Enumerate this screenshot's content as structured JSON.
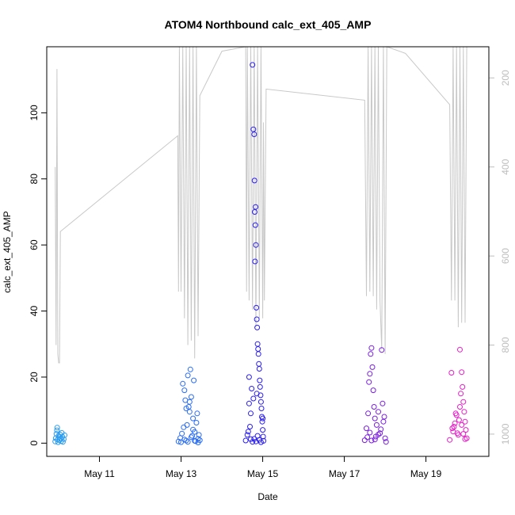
{
  "chart_data": {
    "type": "scatter",
    "title": "ATOM4 Northbound calc_ext_405_AMP",
    "xlabel": "Date",
    "ylabel": "calc_ext_405_AMP",
    "x_axis": {
      "type": "date",
      "range": [
        "2018-05-09T17:00",
        "2018-05-20T13:00"
      ],
      "ticks": [
        {
          "x": "2018-05-11",
          "label": "May 11"
        },
        {
          "x": "2018-05-13",
          "label": "May 13"
        },
        {
          "x": "2018-05-15",
          "label": "May 15"
        },
        {
          "x": "2018-05-17",
          "label": "May 17"
        },
        {
          "x": "2018-05-19",
          "label": "May 19"
        }
      ]
    },
    "y_axis": {
      "range": [
        -4,
        120
      ],
      "ticks": [
        0,
        20,
        40,
        60,
        80,
        100
      ]
    },
    "y2_axis": {
      "range": [
        1050,
        130
      ],
      "reversed": true,
      "ticks": [
        200,
        400,
        600,
        800,
        1000
      ],
      "color": "#bdbdbd"
    },
    "grid": false,
    "series": [
      {
        "kind": "points",
        "color": "#2b9cf0",
        "points": [
          {
            "x": "2018-05-09T22:00",
            "y": 0.5
          },
          {
            "x": "2018-05-09T22:20",
            "y": 1.5
          },
          {
            "x": "2018-05-09T22:40",
            "y": 2.8
          },
          {
            "x": "2018-05-09T23:00",
            "y": 3.9
          },
          {
            "x": "2018-05-09T23:10",
            "y": 4.7
          },
          {
            "x": "2018-05-09T23:20",
            "y": 1.1
          },
          {
            "x": "2018-05-09T23:40",
            "y": 0.3
          },
          {
            "x": "2018-05-10T00:00",
            "y": 2.2
          },
          {
            "x": "2018-05-10T00:10",
            "y": 1.8
          },
          {
            "x": "2018-05-10T00:30",
            "y": 0.9
          },
          {
            "x": "2018-05-10T00:50",
            "y": 2.6
          },
          {
            "x": "2018-05-10T01:10",
            "y": 1.4
          },
          {
            "x": "2018-05-10T01:30",
            "y": 0.6
          },
          {
            "x": "2018-05-10T01:50",
            "y": 3.1
          },
          {
            "x": "2018-05-10T02:10",
            "y": 1.9
          },
          {
            "x": "2018-05-10T02:30",
            "y": 0.4
          },
          {
            "x": "2018-05-10T03:00",
            "y": 1.2
          },
          {
            "x": "2018-05-10T03:30",
            "y": 2.4
          }
        ]
      },
      {
        "kind": "points",
        "color": "#2a6ef5",
        "points": [
          {
            "x": "2018-05-12T22:30",
            "y": 0.5
          },
          {
            "x": "2018-05-12T23:30",
            "y": 1.6
          },
          {
            "x": "2018-05-13T00:30",
            "y": 2.9
          },
          {
            "x": "2018-05-13T01:00",
            "y": 18.0
          },
          {
            "x": "2018-05-13T01:30",
            "y": 4.8
          },
          {
            "x": "2018-05-13T02:00",
            "y": 16.0
          },
          {
            "x": "2018-05-13T02:30",
            "y": 13.0
          },
          {
            "x": "2018-05-13T03:00",
            "y": 0.8
          },
          {
            "x": "2018-05-13T03:30",
            "y": 5.5
          },
          {
            "x": "2018-05-13T04:00",
            "y": 20.5
          },
          {
            "x": "2018-05-13T04:30",
            "y": 11.0
          },
          {
            "x": "2018-05-13T05:00",
            "y": 9.5
          },
          {
            "x": "2018-05-13T05:30",
            "y": 22.3
          },
          {
            "x": "2018-05-13T06:00",
            "y": 14.0
          },
          {
            "x": "2018-05-13T06:30",
            "y": 2.2
          },
          {
            "x": "2018-05-13T07:00",
            "y": 7.5
          },
          {
            "x": "2018-05-13T07:30",
            "y": 19.0
          },
          {
            "x": "2018-05-13T08:00",
            "y": 3.4
          },
          {
            "x": "2018-05-13T08:30",
            "y": 0.6
          },
          {
            "x": "2018-05-13T09:00",
            "y": 6.2
          },
          {
            "x": "2018-05-13T09:30",
            "y": 9.0
          },
          {
            "x": "2018-05-13T10:00",
            "y": 1.3
          },
          {
            "x": "2018-05-13T10:30",
            "y": 2.5
          },
          {
            "x": "2018-05-13T11:00",
            "y": 0.9
          },
          {
            "x": "2018-05-13T00:00",
            "y": 0.3
          },
          {
            "x": "2018-05-13T02:00",
            "y": 1.1
          },
          {
            "x": "2018-05-13T04:00",
            "y": 0.4
          },
          {
            "x": "2018-05-13T06:00",
            "y": 1.8
          },
          {
            "x": "2018-05-13T08:00",
            "y": 0.7
          },
          {
            "x": "2018-05-13T10:00",
            "y": 0.2
          },
          {
            "x": "2018-05-13T03:00",
            "y": 10.5
          },
          {
            "x": "2018-05-13T05:00",
            "y": 12.5
          },
          {
            "x": "2018-05-13T07:00",
            "y": 4.1
          }
        ]
      },
      {
        "kind": "points",
        "color": "#2a1ef0",
        "points": [
          {
            "x": "2018-05-14T14:00",
            "y": 0.8
          },
          {
            "x": "2018-05-14T15:00",
            "y": 2.5
          },
          {
            "x": "2018-05-14T16:00",
            "y": 12.0
          },
          {
            "x": "2018-05-14T16:30",
            "y": 5.0
          },
          {
            "x": "2018-05-14T17:00",
            "y": 1.2
          },
          {
            "x": "2018-05-14T17:30",
            "y": 16.5
          },
          {
            "x": "2018-05-14T18:00",
            "y": 114.5
          },
          {
            "x": "2018-05-14T18:30",
            "y": 95.0
          },
          {
            "x": "2018-05-14T19:00",
            "y": 93.5
          },
          {
            "x": "2018-05-14T19:10",
            "y": 79.5
          },
          {
            "x": "2018-05-14T19:20",
            "y": 70.0
          },
          {
            "x": "2018-05-14T19:30",
            "y": 55.0
          },
          {
            "x": "2018-05-14T19:40",
            "y": 66.0
          },
          {
            "x": "2018-05-14T19:50",
            "y": 71.5
          },
          {
            "x": "2018-05-14T20:00",
            "y": 60.0
          },
          {
            "x": "2018-05-14T20:15",
            "y": 41.0
          },
          {
            "x": "2018-05-14T20:30",
            "y": 37.5
          },
          {
            "x": "2018-05-14T20:45",
            "y": 35.0
          },
          {
            "x": "2018-05-14T21:00",
            "y": 30.0
          },
          {
            "x": "2018-05-14T21:15",
            "y": 28.5
          },
          {
            "x": "2018-05-14T21:30",
            "y": 27.0
          },
          {
            "x": "2018-05-14T21:45",
            "y": 24.0
          },
          {
            "x": "2018-05-14T22:00",
            "y": 22.5
          },
          {
            "x": "2018-05-14T22:15",
            "y": 19.0
          },
          {
            "x": "2018-05-14T22:30",
            "y": 17.0
          },
          {
            "x": "2018-05-14T22:45",
            "y": 14.5
          },
          {
            "x": "2018-05-14T23:00",
            "y": 12.5
          },
          {
            "x": "2018-05-14T23:15",
            "y": 10.5
          },
          {
            "x": "2018-05-14T23:30",
            "y": 8.0
          },
          {
            "x": "2018-05-14T23:45",
            "y": 6.5
          },
          {
            "x": "2018-05-15T00:00",
            "y": 4.0
          },
          {
            "x": "2018-05-15T00:15",
            "y": 2.0
          },
          {
            "x": "2018-05-15T00:30",
            "y": 0.7
          },
          {
            "x": "2018-05-14T18:00",
            "y": 0.4
          },
          {
            "x": "2018-05-14T19:00",
            "y": 1.3
          },
          {
            "x": "2018-05-14T20:00",
            "y": 0.5
          },
          {
            "x": "2018-05-14T21:00",
            "y": 2.2
          },
          {
            "x": "2018-05-14T22:00",
            "y": 1.0
          },
          {
            "x": "2018-05-14T23:00",
            "y": 0.3
          },
          {
            "x": "2018-05-14T16:00",
            "y": 20.0
          },
          {
            "x": "2018-05-14T17:00",
            "y": 9.0
          },
          {
            "x": "2018-05-14T18:30",
            "y": 13.5
          },
          {
            "x": "2018-05-15T00:00",
            "y": 7.5
          },
          {
            "x": "2018-05-14T15:30",
            "y": 3.5
          },
          {
            "x": "2018-05-14T20:30",
            "y": 15.0
          }
        ]
      },
      {
        "kind": "points",
        "color": "#7a1ee0",
        "points": [
          {
            "x": "2018-05-17T12:00",
            "y": 0.9
          },
          {
            "x": "2018-05-17T13:00",
            "y": 4.5
          },
          {
            "x": "2018-05-17T14:00",
            "y": 9.0
          },
          {
            "x": "2018-05-17T14:30",
            "y": 18.5
          },
          {
            "x": "2018-05-17T15:00",
            "y": 21.0
          },
          {
            "x": "2018-05-17T15:30",
            "y": 27.0
          },
          {
            "x": "2018-05-17T16:00",
            "y": 28.8
          },
          {
            "x": "2018-05-17T16:30",
            "y": 23.0
          },
          {
            "x": "2018-05-17T17:00",
            "y": 16.0
          },
          {
            "x": "2018-05-17T17:30",
            "y": 11.0
          },
          {
            "x": "2018-05-17T18:00",
            "y": 7.5
          },
          {
            "x": "2018-05-17T18:30",
            "y": 2.0
          },
          {
            "x": "2018-05-17T19:00",
            "y": 5.5
          },
          {
            "x": "2018-05-17T20:00",
            "y": 9.5
          },
          {
            "x": "2018-05-17T21:00",
            "y": 3.0
          },
          {
            "x": "2018-05-17T22:00",
            "y": 28.2
          },
          {
            "x": "2018-05-17T22:30",
            "y": 12.0
          },
          {
            "x": "2018-05-17T23:00",
            "y": 6.5
          },
          {
            "x": "2018-05-18T00:00",
            "y": 1.5
          },
          {
            "x": "2018-05-18T00:30",
            "y": 0.4
          },
          {
            "x": "2018-05-17T13:30",
            "y": 1.8
          },
          {
            "x": "2018-05-17T15:00",
            "y": 3.2
          },
          {
            "x": "2018-05-17T16:00",
            "y": 0.8
          },
          {
            "x": "2018-05-17T18:00",
            "y": 1.1
          },
          {
            "x": "2018-05-17T20:00",
            "y": 2.6
          },
          {
            "x": "2018-05-17T21:30",
            "y": 4.2
          },
          {
            "x": "2018-05-17T23:30",
            "y": 8.0
          }
        ]
      },
      {
        "kind": "points",
        "color": "#e61ec8",
        "points": [
          {
            "x": "2018-05-19T14:00",
            "y": 1.0
          },
          {
            "x": "2018-05-19T15:00",
            "y": 21.3
          },
          {
            "x": "2018-05-19T16:00",
            "y": 3.5
          },
          {
            "x": "2018-05-19T17:00",
            "y": 6.0
          },
          {
            "x": "2018-05-19T18:00",
            "y": 8.5
          },
          {
            "x": "2018-05-19T19:00",
            "y": 2.5
          },
          {
            "x": "2018-05-19T20:00",
            "y": 28.3
          },
          {
            "x": "2018-05-19T20:30",
            "y": 15.0
          },
          {
            "x": "2018-05-19T21:00",
            "y": 21.5
          },
          {
            "x": "2018-05-19T21:30",
            "y": 17.0
          },
          {
            "x": "2018-05-19T22:00",
            "y": 12.5
          },
          {
            "x": "2018-05-19T22:30",
            "y": 9.5
          },
          {
            "x": "2018-05-19T23:00",
            "y": 6.5
          },
          {
            "x": "2018-05-19T23:30",
            "y": 4.0
          },
          {
            "x": "2018-05-20T00:00",
            "y": 1.5
          },
          {
            "x": "2018-05-19T16:30",
            "y": 5.0
          },
          {
            "x": "2018-05-19T18:30",
            "y": 3.0
          },
          {
            "x": "2018-05-19T19:30",
            "y": 7.0
          },
          {
            "x": "2018-05-19T21:00",
            "y": 5.5
          },
          {
            "x": "2018-05-19T22:00",
            "y": 2.8
          },
          {
            "x": "2018-05-19T23:00",
            "y": 1.2
          },
          {
            "x": "2018-05-19T15:30",
            "y": 4.5
          },
          {
            "x": "2018-05-19T17:30",
            "y": 9.0
          },
          {
            "x": "2018-05-19T20:00",
            "y": 11.0
          }
        ]
      },
      {
        "kind": "line",
        "axis": "y2",
        "color": "#c8c8c8",
        "points": [
          {
            "x": "2018-05-09T22:00",
            "y": 400
          },
          {
            "x": "2018-05-09T22:30",
            "y": 800
          },
          {
            "x": "2018-05-09T23:00",
            "y": 180
          },
          {
            "x": "2018-05-09T23:30",
            "y": 820
          },
          {
            "x": "2018-05-10T00:00",
            "y": 840
          },
          {
            "x": "2018-05-10T00:30",
            "y": 840
          },
          {
            "x": "2018-05-10T01:00",
            "y": 545
          },
          {
            "x": "2018-05-12T22:00",
            "y": 330
          },
          {
            "x": "2018-05-12T22:30",
            "y": 680
          },
          {
            "x": "2018-05-12T23:00",
            "y": 130
          },
          {
            "x": "2018-05-13T00:00",
            "y": 680
          },
          {
            "x": "2018-05-13T01:00",
            "y": 130
          },
          {
            "x": "2018-05-13T02:00",
            "y": 740
          },
          {
            "x": "2018-05-13T03:00",
            "y": 130
          },
          {
            "x": "2018-05-13T04:00",
            "y": 800
          },
          {
            "x": "2018-05-13T05:00",
            "y": 130
          },
          {
            "x": "2018-05-13T06:00",
            "y": 790
          },
          {
            "x": "2018-05-13T07:00",
            "y": 130
          },
          {
            "x": "2018-05-13T08:00",
            "y": 830
          },
          {
            "x": "2018-05-13T09:00",
            "y": 130
          },
          {
            "x": "2018-05-13T10:00",
            "y": 780
          },
          {
            "x": "2018-05-13T11:00",
            "y": 240
          },
          {
            "x": "2018-05-14T00:00",
            "y": 140
          },
          {
            "x": "2018-05-14T14:00",
            "y": 130
          },
          {
            "x": "2018-05-14T14:30",
            "y": 680
          },
          {
            "x": "2018-05-14T15:00",
            "y": 130
          },
          {
            "x": "2018-05-14T16:00",
            "y": 700
          },
          {
            "x": "2018-05-14T17:00",
            "y": 130
          },
          {
            "x": "2018-05-14T18:00",
            "y": 720
          },
          {
            "x": "2018-05-14T19:00",
            "y": 130
          },
          {
            "x": "2018-05-14T20:00",
            "y": 760
          },
          {
            "x": "2018-05-14T21:00",
            "y": 130
          },
          {
            "x": "2018-05-14T22:00",
            "y": 740
          },
          {
            "x": "2018-05-14T23:00",
            "y": 130
          },
          {
            "x": "2018-05-15T00:00",
            "y": 740
          },
          {
            "x": "2018-05-15T00:30",
            "y": 300
          },
          {
            "x": "2018-05-15T01:00",
            "y": 700
          },
          {
            "x": "2018-05-15T02:00",
            "y": 225
          },
          {
            "x": "2018-05-17T12:00",
            "y": 250
          },
          {
            "x": "2018-05-17T13:00",
            "y": 690
          },
          {
            "x": "2018-05-17T14:00",
            "y": 130
          },
          {
            "x": "2018-05-17T15:00",
            "y": 680
          },
          {
            "x": "2018-05-17T16:00",
            "y": 130
          },
          {
            "x": "2018-05-17T17:00",
            "y": 690
          },
          {
            "x": "2018-05-17T18:00",
            "y": 130
          },
          {
            "x": "2018-05-17T19:00",
            "y": 720
          },
          {
            "x": "2018-05-17T20:00",
            "y": 130
          },
          {
            "x": "2018-05-17T21:00",
            "y": 700
          },
          {
            "x": "2018-05-17T22:00",
            "y": 810
          },
          {
            "x": "2018-05-17T23:00",
            "y": 130
          },
          {
            "x": "2018-05-18T00:00",
            "y": 820
          },
          {
            "x": "2018-05-18T01:00",
            "y": 130
          },
          {
            "x": "2018-05-18T12:00",
            "y": 145
          },
          {
            "x": "2018-05-19T14:00",
            "y": 260
          },
          {
            "x": "2018-05-19T15:00",
            "y": 700
          },
          {
            "x": "2018-05-19T16:00",
            "y": 130
          },
          {
            "x": "2018-05-19T17:00",
            "y": 700
          },
          {
            "x": "2018-05-19T18:00",
            "y": 130
          },
          {
            "x": "2018-05-19T19:00",
            "y": 760
          },
          {
            "x": "2018-05-19T20:00",
            "y": 130
          },
          {
            "x": "2018-05-19T21:00",
            "y": 750
          },
          {
            "x": "2018-05-19T22:00",
            "y": 130
          },
          {
            "x": "2018-05-19T23:00",
            "y": 750
          },
          {
            "x": "2018-05-20T00:00",
            "y": 130
          }
        ]
      }
    ]
  }
}
